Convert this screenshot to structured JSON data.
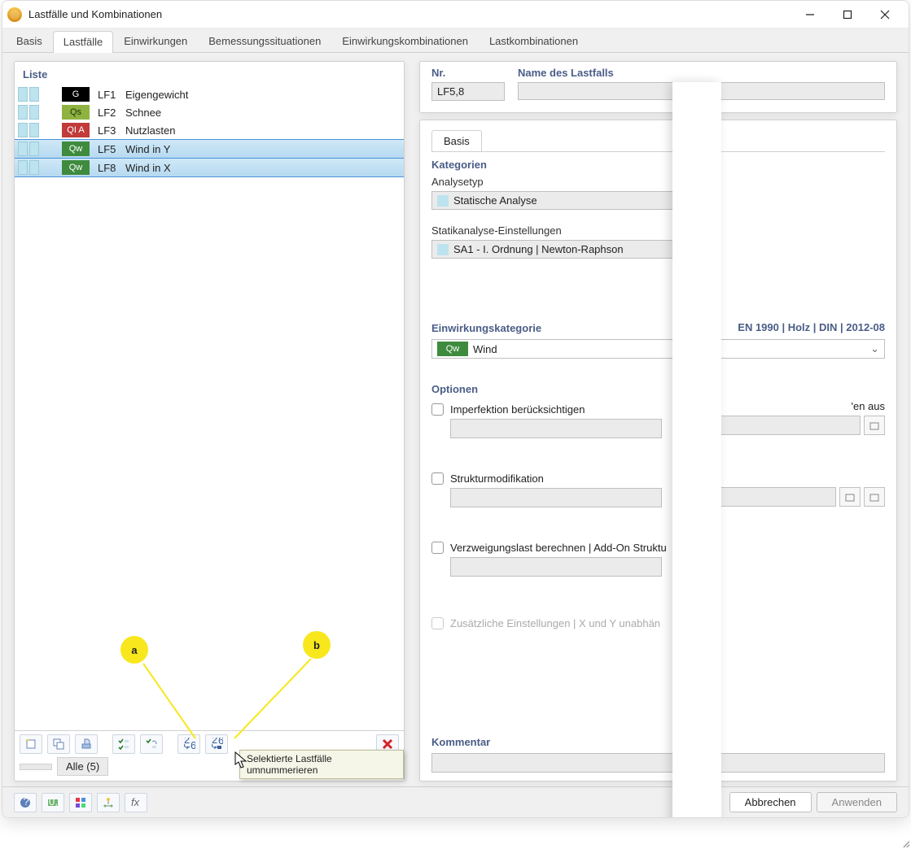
{
  "window": {
    "title": "Lastfälle und Kombinationen"
  },
  "tabs": [
    "Basis",
    "Lastfälle",
    "Einwirkungen",
    "Bemessungssituationen",
    "Einwirkungskombinationen",
    "Lastkombinationen"
  ],
  "active_tab": 1,
  "left": {
    "header": "Liste",
    "rows": [
      {
        "id": "LF1",
        "name": "Eigengewicht",
        "tag": "G",
        "tag_bg": "#000000",
        "tag_fg": "#ffffff",
        "selected": false
      },
      {
        "id": "LF2",
        "name": "Schnee",
        "tag": "Qs",
        "tag_bg": "#8fb340",
        "tag_fg": "#1d330b",
        "selected": false
      },
      {
        "id": "LF3",
        "name": "Nutzlasten",
        "tag": "QI A",
        "tag_bg": "#c23a3a",
        "tag_fg": "#ffffff",
        "selected": false
      },
      {
        "id": "LF5",
        "name": "Wind in Y",
        "tag": "Qw",
        "tag_bg": "#3e8b3e",
        "tag_fg": "#ffffff",
        "selected": true
      },
      {
        "id": "LF8",
        "name": "Wind in X",
        "tag": "Qw",
        "tag_bg": "#3e8b3e",
        "tag_fg": "#ffffff",
        "selected": true
      }
    ],
    "filter": "Alle (5)",
    "tooltip": "Selektierte Lastfälle umnummerieren",
    "callouts": {
      "a": "a",
      "b": "b"
    }
  },
  "right": {
    "nr_label": "Nr.",
    "nr_value": "LF5,8",
    "name_label": "Name des Lastfalls",
    "name_value": "",
    "subtab": "Basis",
    "kategorien": "Kategorien",
    "analysetyp_label": "Analysetyp",
    "analysetyp_value": "Statische Analyse",
    "statik_label": "Statikanalyse-Einstellungen",
    "statik_value": "SA1 - I. Ordnung | Newton-Raphson",
    "eink_label": "Einwirkungskategorie",
    "standard": "EN 1990 | Holz | DIN | 2012-08",
    "eink_tag": "Qw",
    "eink_tag_bg": "#3e8b3e",
    "eink_value": "Wind",
    "opt_label": "Optionen",
    "opt1": "Imperfektion berücksichtigen",
    "opt1_right": "'en aus",
    "opt2": "Strukturmodifikation",
    "opt3": "Verzweigungslast berechnen | Add-On Struktu",
    "opt4": "Zusätzliche Einstellungen | X und Y unabhän",
    "kommentar": "Kommentar"
  },
  "footer": {
    "abbrechen": "Abbrechen",
    "anwenden": "Anwenden"
  }
}
